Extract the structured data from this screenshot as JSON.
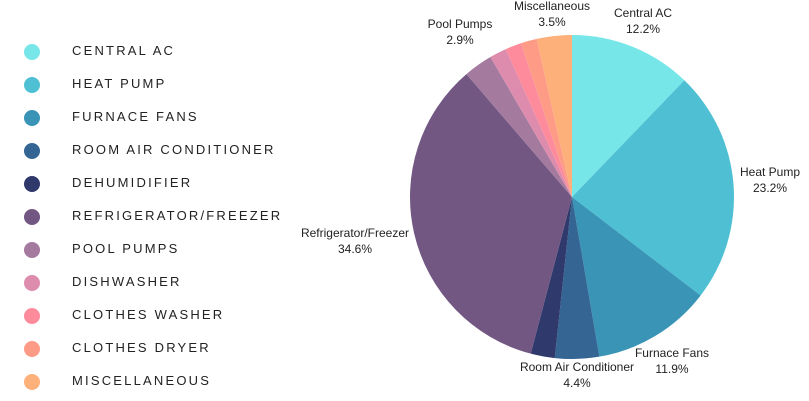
{
  "legend": {
    "items": [
      {
        "label": "CENTRAL AC",
        "color": "#76e6e8"
      },
      {
        "label": "HEAT PUMP",
        "color": "#4fc0d4"
      },
      {
        "label": "FURNACE FANS",
        "color": "#3994b6"
      },
      {
        "label": "ROOM AIR CONDITIONER",
        "color": "#346593"
      },
      {
        "label": "DEHUMIDIFIER",
        "color": "#2f396b"
      },
      {
        "label": "REFRIGERATOR/FREEZER",
        "color": "#725783"
      },
      {
        "label": "POOL PUMPS",
        "color": "#a47a9e"
      },
      {
        "label": "DISHWASHER",
        "color": "#de8cad"
      },
      {
        "label": "CLOTHES WASHER",
        "color": "#fd8b9b"
      },
      {
        "label": "CLOTHES DRYER",
        "color": "#fd9b86"
      },
      {
        "label": "MISCELLANEOUS",
        "color": "#fdb07a"
      }
    ]
  },
  "chart_data": {
    "type": "pie",
    "title": "",
    "legend_position": "left",
    "slices": [
      {
        "name": "Central AC",
        "value": 12.2,
        "value_label": "12.2%",
        "color": "#76e6e8",
        "label_shown": true
      },
      {
        "name": "Heat Pump",
        "value": 23.2,
        "value_label": "23.2%",
        "color": "#4fc0d4",
        "label_shown": true
      },
      {
        "name": "Furnace Fans",
        "value": 11.9,
        "value_label": "11.9%",
        "color": "#3994b6",
        "label_shown": true
      },
      {
        "name": "Room Air Conditioner",
        "value": 4.4,
        "value_label": "4.4%",
        "color": "#346593",
        "label_shown": true
      },
      {
        "name": "Dehumidifier",
        "value": 2.4,
        "value_label": "",
        "color": "#2f396b",
        "label_shown": false
      },
      {
        "name": "Refrigerator/Freezer",
        "value": 34.6,
        "value_label": "34.6%",
        "color": "#725783",
        "label_shown": true
      },
      {
        "name": "Pool Pumps",
        "value": 2.9,
        "value_label": "2.9%",
        "color": "#a47a9e",
        "label_shown": true
      },
      {
        "name": "Dishwasher",
        "value": 1.7,
        "value_label": "",
        "color": "#de8cad",
        "label_shown": false
      },
      {
        "name": "Clothes Washer",
        "value": 1.6,
        "value_label": "",
        "color": "#fd8b9b",
        "label_shown": false
      },
      {
        "name": "Clothes Dryer",
        "value": 1.6,
        "value_label": "",
        "color": "#fd9b86",
        "label_shown": false
      },
      {
        "name": "Miscellaneous",
        "value": 3.5,
        "value_label": "3.5%",
        "color": "#fdb07a",
        "label_shown": true
      }
    ]
  }
}
